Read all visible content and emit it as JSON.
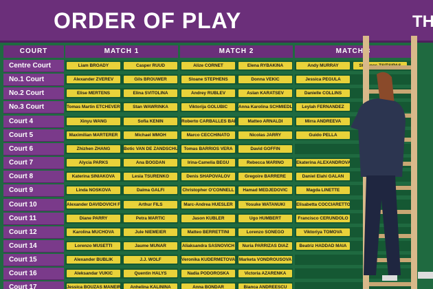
{
  "header": {
    "title": "ORDER OF PLAY",
    "title_partial": "TH"
  },
  "columns": [
    "COURT",
    "MATCH 1",
    "MATCH 2",
    "MATCH 3"
  ],
  "rows": [
    {
      "court": "Centre Court",
      "match1": [
        "Liam BROADY",
        "Casper RUUD"
      ],
      "match2": [
        "Alize CORNET",
        "Elena RYBAKINA"
      ],
      "match3": [
        "Andy MURRAY",
        "Stefanos TSITSIPAS"
      ]
    },
    {
      "court": "No.1 Court",
      "match1": [
        "Alexander ZVEREV",
        "Gils BROUWER"
      ],
      "match2": [
        "Sloane STEPHENS",
        "Donna VEKIC"
      ],
      "match3": [
        "Jessica PEGULA"
      ]
    },
    {
      "court": "No.2 Court",
      "match1": [
        "Elise MERTENS",
        "Elina SVITOLINA"
      ],
      "match2": [
        "Andrey RUBLEV",
        "Aslan KARATSEV"
      ],
      "match3": [
        "Danielle COLLINS"
      ]
    },
    {
      "court": "No.3 Court",
      "match1": [
        "Tomas Martin ETCHEVERRY",
        "Stan WAWRINKA"
      ],
      "match2": [
        "Viktorija GOLUBIC",
        "Anna Karolina SCHMIEDLOVA"
      ],
      "match3": [
        "Leylah FERNANDEZ"
      ]
    },
    {
      "court": "Court 4",
      "match1": [
        "Xinyu WANG",
        "Sofia KENIN"
      ],
      "match2": [
        "Roberto CARBALLES BAENA",
        "Matteo ARNALDI"
      ],
      "match3": [
        "Mirra ANDREEVA"
      ]
    },
    {
      "court": "Court 5",
      "match1": [
        "Maximilian MARTERER",
        "Michael MMOH"
      ],
      "match2": [
        "Marco CECCHINATO",
        "Nicolas JARRY"
      ],
      "match3": [
        "Guido PELLA"
      ]
    },
    {
      "court": "Court 6",
      "match1": [
        "Zhizhen ZHANG",
        "Botic VAN DE ZANDSCHULP"
      ],
      "match2": [
        "Tomas BARRIOS VERA",
        "David GOFFIN"
      ]
    },
    {
      "court": "Court 7",
      "match1": [
        "Alycia PARKS",
        "Ana BOGDAN"
      ],
      "match2": [
        "Irina-Camelia BEGU",
        "Rebecca MARINO"
      ],
      "match3": [
        "Ekaterina ALEXANDROVA"
      ]
    },
    {
      "court": "Court 8",
      "match1": [
        "Katerina SINIAKOVA",
        "Lesia TSURENKO"
      ],
      "match2": [
        "Denis SHAPOVALOV",
        "Gregoire BARRERE"
      ],
      "match3": [
        "Daniel Elahi GALAN"
      ]
    },
    {
      "court": "Court 9",
      "match1": [
        "Linda NOSKOVA",
        "Dalma GALFI"
      ],
      "match2": [
        "Christopher O'CONNELL",
        "Hamad MEDJEDOVIC"
      ],
      "match3": [
        "Magda LINETTE"
      ]
    },
    {
      "court": "Court 10",
      "match1": [
        "Alexander DAVIDOVICH FOKINA",
        "Arthur FILS"
      ],
      "match2": [
        "Marc-Andrea HUESLER",
        "Yosuke WATANUKI"
      ],
      "match3": [
        "Elisabetta COCCIARETTO"
      ]
    },
    {
      "court": "Court 11",
      "match1": [
        "Diane PARRY",
        "Petra MARTIC"
      ],
      "match2": [
        "Jason KUBLER",
        "Ugo HUMBERT"
      ],
      "match3": [
        "Francisco CERUNDOLO"
      ]
    },
    {
      "court": "Court 12",
      "match1": [
        "Karolina MUCHOVA",
        "Jule NIEMEIER"
      ],
      "match2": [
        "Matteo BERRETTINI",
        "Lorenzo SONEGO"
      ],
      "match3": [
        "Viktoriya TOMOVA"
      ]
    },
    {
      "court": "Court 14",
      "match1": [
        "Lorenzo MUSETTI",
        "Jaume MUNAR"
      ],
      "match2": [
        "Aliaksandra SASNOVICH",
        "Nuria PARRIZAS DIAZ"
      ],
      "match3": [
        "Beatriz HADDAD MAIA"
      ]
    },
    {
      "court": "Court 15",
      "match1": [
        "Alexander BUBLIK",
        "J.J. WOLF"
      ],
      "match2": [
        "Veronika KUDERMETOVA",
        "Marketa VONDROUSOVA"
      ]
    },
    {
      "court": "Court 16",
      "match1": [
        "Aleksandar VUKIC",
        "Quentin HALYS"
      ],
      "match2": [
        "Nadia PODOROSKA",
        "Victoria AZARENKA"
      ]
    },
    {
      "court": "Court 17",
      "match1": [
        "Jessica BOUZAS MANEIRO",
        "Anhelina KALININA"
      ],
      "match2": [
        "Anna BONDAR",
        "Bianca ANDREESCU"
      ]
    }
  ]
}
